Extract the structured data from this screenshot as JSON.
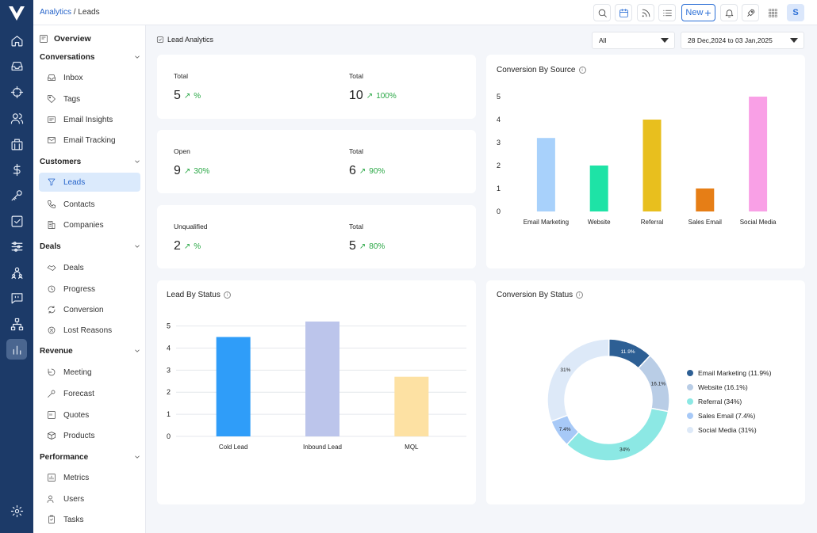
{
  "breadcrumb": {
    "parent": "Analytics",
    "sep": " / ",
    "current": "Leads"
  },
  "topbar": {
    "new_label": "New",
    "avatar": "S",
    "icons": [
      "search-icon",
      "calendar-icon",
      "feed-icon",
      "list-icon",
      "bell-icon",
      "rocket-icon",
      "apps-grid-icon"
    ]
  },
  "rail": {
    "icons": [
      "home-icon",
      "inbox-icon",
      "target-icon",
      "users-icon",
      "building-icon",
      "dollar-icon",
      "key-icon",
      "check-square-icon",
      "sliders-icon",
      "team-icon",
      "chat-icon",
      "hierarchy-icon",
      "analytics-icon",
      "settings-icon"
    ]
  },
  "sidebar": {
    "overview": "Overview",
    "sections": [
      {
        "label": "Conversations",
        "items": [
          "Inbox",
          "Tags",
          "Email Insights",
          "Email Tracking"
        ]
      },
      {
        "label": "Customers",
        "items": [
          "Leads",
          "Contacts",
          "Companies"
        ]
      },
      {
        "label": "Deals",
        "items": [
          "Deals",
          "Progress",
          "Conversion",
          "Lost Reasons"
        ]
      },
      {
        "label": "Revenue",
        "items": [
          "Meeting",
          "Forecast",
          "Quotes",
          "Products"
        ]
      },
      {
        "label": "Performance",
        "items": [
          "Metrics",
          "Users",
          "Tasks"
        ]
      }
    ],
    "active": "Leads"
  },
  "page": {
    "title": "Lead Analytics",
    "filter_value": "All",
    "date_range": "28 Dec,2024 to 03 Jan,2025"
  },
  "stats": [
    {
      "left": {
        "label": "Total",
        "value": "5",
        "pct": "%"
      },
      "right": {
        "label": "Total",
        "value": "10",
        "pct": "100%"
      }
    },
    {
      "left": {
        "label": "Open",
        "value": "9",
        "pct": "30%"
      },
      "right": {
        "label": "Total",
        "value": "6",
        "pct": "90%"
      }
    },
    {
      "left": {
        "label": "Unqualified",
        "value": "2",
        "pct": "%"
      },
      "right": {
        "label": "Total",
        "value": "5",
        "pct": "80%"
      }
    }
  ],
  "colors": {
    "accent": "#2563c9",
    "rail": "#1c3a68",
    "positive": "#29a745"
  },
  "chart_data": [
    {
      "type": "bar",
      "title": "Conversion By Source",
      "categories": [
        "Email Marketing",
        "Website",
        "Referral",
        "Sales Email",
        "Social Media"
      ],
      "values": [
        3.2,
        2,
        4,
        1,
        5
      ],
      "colors": [
        "#a8d1fb",
        "#1ee3a6",
        "#e8bf1e",
        "#e67e16",
        "#f9a0e6"
      ],
      "yticks": [
        0,
        1,
        2,
        3,
        4,
        5
      ],
      "ylim": [
        0,
        5
      ],
      "grid": false
    },
    {
      "type": "bar",
      "title": "Lead By Status",
      "categories": [
        "Cold Lead",
        "Inbound Lead",
        "MQL"
      ],
      "values": [
        4.5,
        5.2,
        2.7
      ],
      "colors": [
        "#2f9df9",
        "#bcc5eb",
        "#fde1a3"
      ],
      "yticks": [
        0,
        1,
        2,
        3,
        4,
        5
      ],
      "ylim": [
        0,
        5.2
      ],
      "grid": true
    },
    {
      "type": "pie",
      "title": "Conversion By Status",
      "slices": [
        {
          "name": "Email Marketing",
          "value": 11.9,
          "label": "11.9%",
          "legend": "Email Marketing (11.9%)",
          "color": "#2d5f94"
        },
        {
          "name": "Website",
          "value": 16.1,
          "label": "16.1%",
          "legend": "Website (16.1%)",
          "color": "#b9cde6"
        },
        {
          "name": "Referral",
          "value": 34,
          "label": "34%",
          "legend": "Referral (34%)",
          "color": "#8ce8e4"
        },
        {
          "name": "Sales Email",
          "value": 7.4,
          "label": "7.4%",
          "legend": "Sales Email (7.4%)",
          "color": "#a7c9f7"
        },
        {
          "name": "Social Media",
          "value": 31,
          "label": "31%",
          "legend": "Social Media (31%)",
          "color": "#dde9f8"
        }
      ],
      "legend_position": "right"
    }
  ]
}
